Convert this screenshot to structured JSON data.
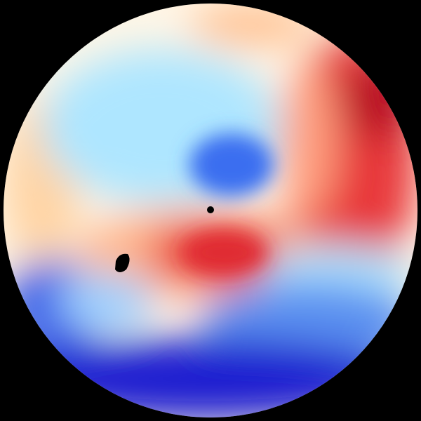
{
  "image": {
    "kind": "radar-velocity-ppi",
    "background": "#000000",
    "palette": {
      "dark_blue": "#1a1ad0",
      "blue": "#3a6ef0",
      "light_blue": "#aee6ff",
      "near_zero": "#fff6e6",
      "light_orange": "#ffd4a4",
      "red": "#e8383a",
      "dark_red": "#b80a24",
      "no_data": "#000000"
    }
  }
}
